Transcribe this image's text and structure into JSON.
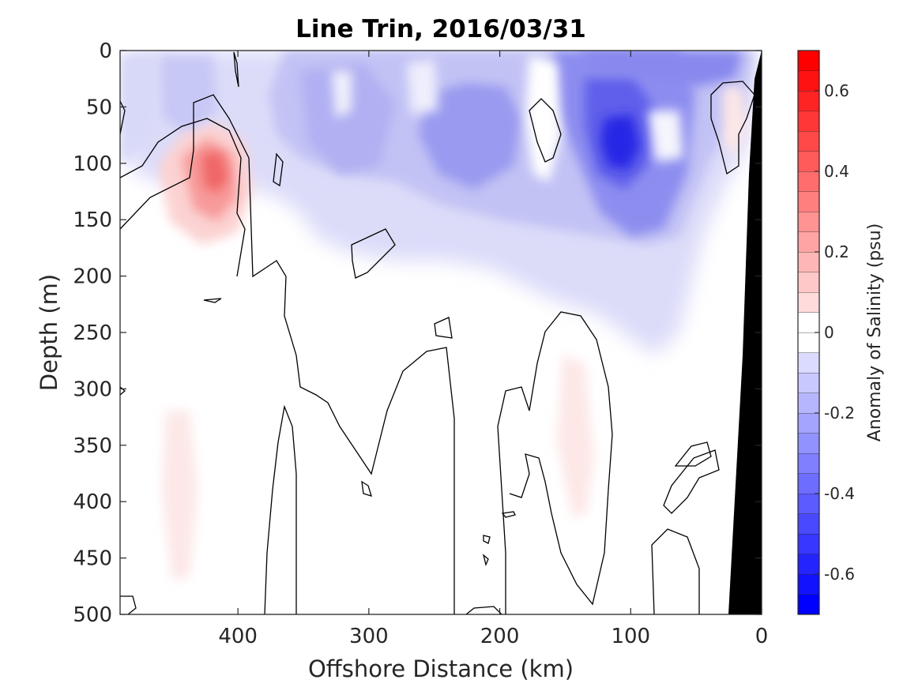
{
  "chart_data": {
    "type": "heatmap",
    "title": "Line Trin, 2016/03/31",
    "xlabel": "Offshore Distance (km)",
    "ylabel": "Depth (m)",
    "xlim": [
      490,
      0
    ],
    "ylim": [
      500,
      0
    ],
    "x_ticks": [
      400,
      300,
      200,
      100,
      0
    ],
    "x_tick_labels": [
      "400",
      "300",
      "200",
      "100",
      "0"
    ],
    "y_ticks": [
      0,
      50,
      100,
      150,
      200,
      250,
      300,
      350,
      400,
      450,
      500
    ],
    "y_tick_labels": [
      "0",
      "50",
      "100",
      "150",
      "200",
      "250",
      "300",
      "350",
      "400",
      "450",
      "500"
    ],
    "colorbar": {
      "label": "Anomaly of Salinity (psu)",
      "range": [
        -0.7,
        0.7
      ],
      "step": 0.05,
      "ticks": [
        0.6,
        0.4,
        0.2,
        0,
        -0.2,
        -0.4,
        -0.6
      ],
      "tick_labels": [
        "0.6",
        "0.4",
        "0.2",
        "0",
        "-0.2",
        "-0.4",
        "-0.6"
      ],
      "neg_color": "#0000ff",
      "pos_color": "#ff0000",
      "zero_color": "#ffffff"
    },
    "contour_level": 0,
    "bathymetry_color": "#000000",
    "features": [
      {
        "kind": "positive_anomaly",
        "x": 418,
        "y": 103,
        "peak": 0.3
      },
      {
        "kind": "positive_anomaly",
        "x": 448,
        "y": 390,
        "peak": 0.05
      },
      {
        "kind": "positive_anomaly",
        "x": 145,
        "y": 345,
        "peak": 0.05
      },
      {
        "kind": "positive_anomaly",
        "x": 23,
        "y": 70,
        "peak": 0.05
      },
      {
        "kind": "negative_anomaly",
        "x": 113,
        "y": 85,
        "peak": -0.5
      },
      {
        "kind": "negative_anomaly",
        "x": 225,
        "y": 85,
        "peak": -0.3
      },
      {
        "kind": "negative_anomaly",
        "x": 100,
        "y": 20,
        "peak": -0.3
      },
      {
        "kind": "negative_anomaly",
        "x": 300,
        "y": 45,
        "peak": -0.2
      },
      {
        "kind": "negative_anomaly",
        "x": 440,
        "y": 50,
        "peak": -0.15
      }
    ]
  }
}
